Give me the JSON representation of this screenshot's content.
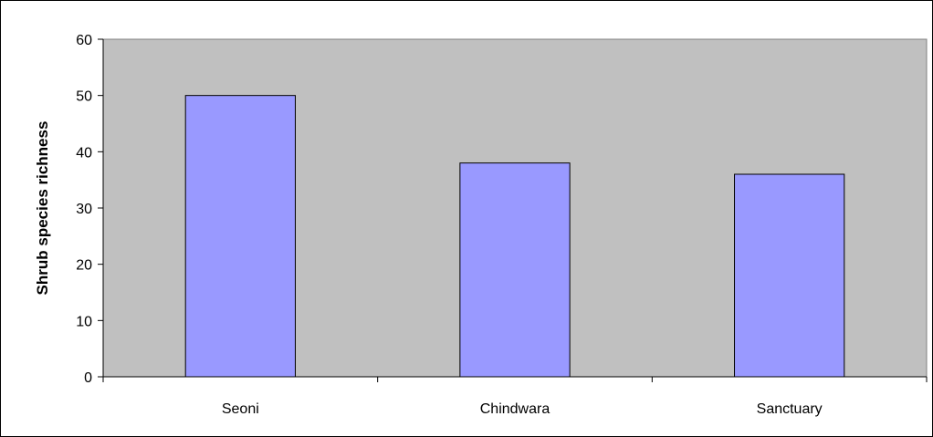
{
  "chart_data": {
    "type": "bar",
    "title": "",
    "xlabel": "",
    "ylabel": "Shrub species richness",
    "categories": [
      "Seoni",
      "Chindwara",
      "Sanctuary"
    ],
    "values": [
      50,
      38,
      36
    ],
    "ylim": [
      0,
      60
    ],
    "yticks": [
      0,
      10,
      20,
      30,
      40,
      50,
      60
    ],
    "grid": false,
    "legend": "none",
    "colors": {
      "bar_fill": "#9999ff",
      "plot_background": "#c0c0c0",
      "frame": "#000000"
    }
  }
}
